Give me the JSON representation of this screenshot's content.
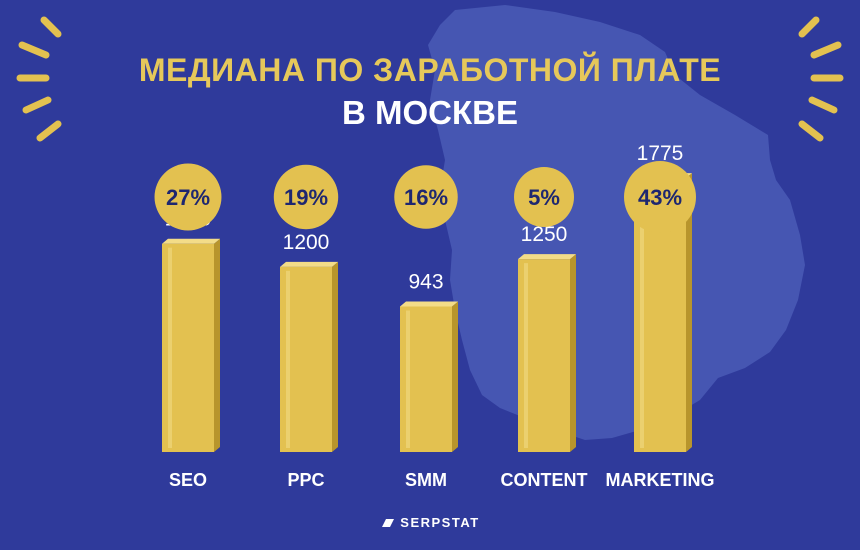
{
  "title_line1": "МЕДИАНА ПО ЗАРАБОТНОЙ ПЛАТЕ",
  "title_line2": "В МОСКВЕ",
  "brand": "SERPSTAT",
  "icons": {
    "background": "moscow-map-icon",
    "rays": "sun-rays-icon",
    "brand": "serpstat-logo-icon"
  },
  "colors": {
    "background": "#2f3a9b",
    "map": "#4656b2",
    "gold": "#e3c150",
    "gold_dark": "#b8952c",
    "gold_light": "#f3dc88",
    "title": "#e6c85a",
    "text": "#ffffff",
    "badge_text": "#1e2770"
  },
  "chart_data": {
    "type": "bar",
    "categories": [
      "SEO",
      "PPC",
      "SMM",
      "CONTENT",
      "MARKETING"
    ],
    "values": [
      1350,
      1200,
      943,
      1250,
      1775
    ],
    "value_labels": [
      "1350",
      "1200",
      "943",
      "1250",
      "1775"
    ],
    "percentages": [
      "27%",
      "19%",
      "16%",
      "5%",
      "43%"
    ],
    "percent_values": [
      27,
      19,
      16,
      5,
      43
    ],
    "title": "МЕДИАНА ПО ЗАРАБОТНОЙ ПЛАТЕ В МОСКВЕ",
    "xlabel": "",
    "ylabel": "",
    "grid": false,
    "legend": "none"
  }
}
